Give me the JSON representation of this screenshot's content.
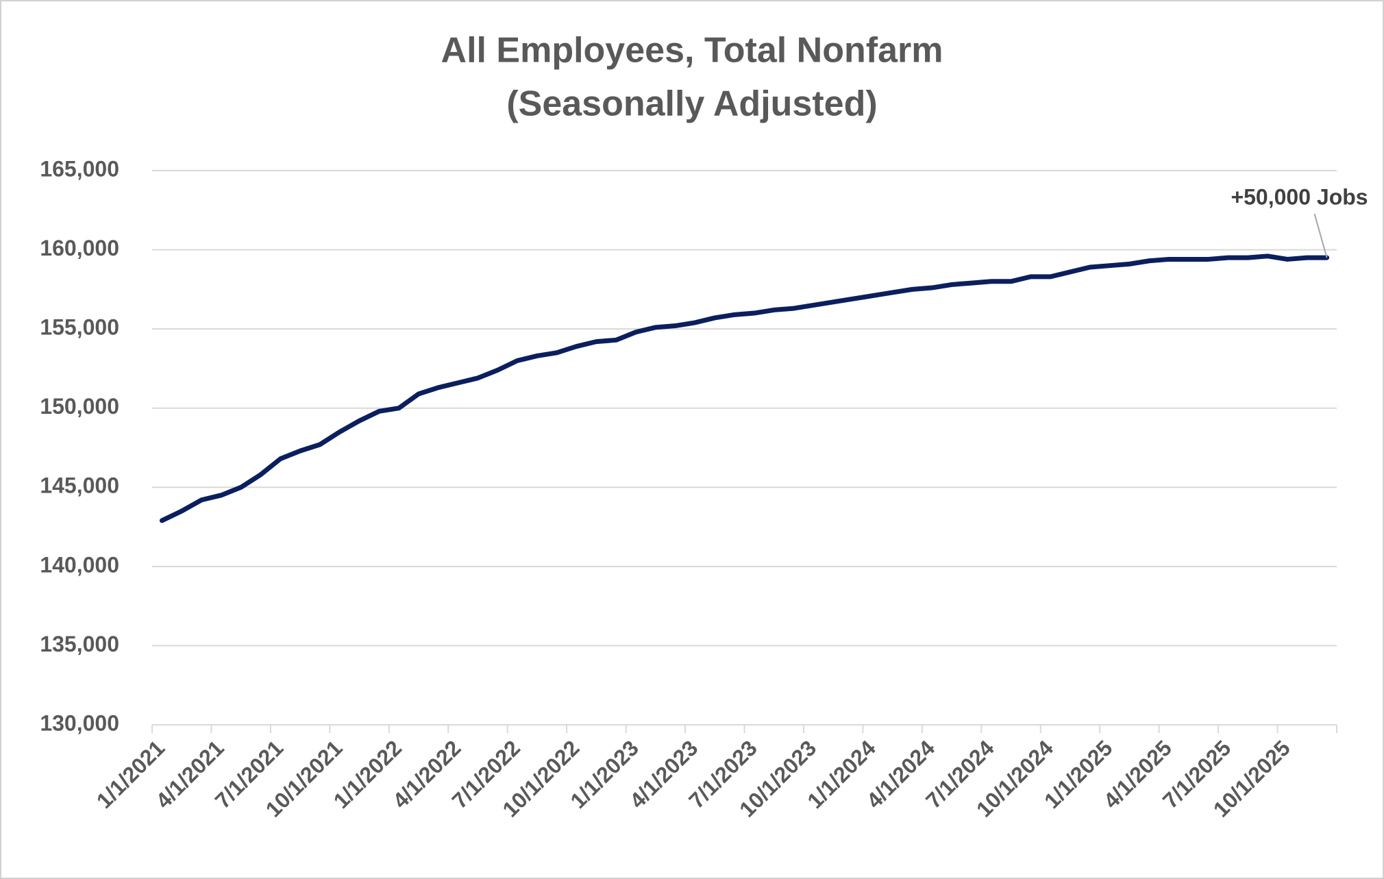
{
  "chart_data": {
    "type": "line",
    "title": "All Employees, Total Nonfarm",
    "subtitle": "(Seasonally Adjusted)",
    "categories": [
      "1/1/2021",
      null,
      null,
      "4/1/2021",
      null,
      null,
      "7/1/2021",
      null,
      null,
      "10/1/2021",
      null,
      null,
      "1/1/2022",
      null,
      null,
      "4/1/2022",
      null,
      null,
      "7/1/2022",
      null,
      null,
      "10/1/2022",
      null,
      null,
      "1/1/2023",
      null,
      null,
      "4/1/2023",
      null,
      null,
      "7/1/2023",
      null,
      null,
      "10/1/2023",
      null,
      null,
      "1/1/2024",
      null,
      null,
      "4/1/2024",
      null,
      null,
      "7/1/2024",
      null,
      null,
      "10/1/2024",
      null,
      null,
      "1/1/2025",
      null,
      null,
      "4/1/2025",
      null,
      null,
      "7/1/2025",
      null,
      null,
      "10/1/2025",
      null,
      null
    ],
    "series": [
      {
        "name": "All Employees, Total Nonfarm",
        "color": "#0b1f5e",
        "values": [
          142900,
          143500,
          144200,
          144500,
          145000,
          145800,
          146800,
          147300,
          147700,
          148500,
          149200,
          149800,
          150000,
          150900,
          151300,
          151600,
          151900,
          152400,
          153000,
          153300,
          153500,
          153900,
          154200,
          154300,
          154800,
          155100,
          155200,
          155400,
          155700,
          155900,
          156000,
          156200,
          156300,
          156500,
          156700,
          156900,
          157100,
          157300,
          157500,
          157600,
          157800,
          157900,
          158000,
          158000,
          158300,
          158300,
          158600,
          158900,
          159000,
          159100,
          159300,
          159400,
          159400,
          159400,
          159500,
          159500,
          159600,
          159400,
          159500,
          159500
        ]
      }
    ],
    "ylim": [
      130000,
      165000
    ],
    "yticks": [
      {
        "value": 130000,
        "label": "130,000"
      },
      {
        "value": 135000,
        "label": "135,000"
      },
      {
        "value": 140000,
        "label": "140,000"
      },
      {
        "value": 145000,
        "label": "145,000"
      },
      {
        "value": 150000,
        "label": "150,000"
      },
      {
        "value": 155000,
        "label": "155,000"
      },
      {
        "value": 160000,
        "label": "160,000"
      },
      {
        "value": 165000,
        "label": "165,000"
      }
    ],
    "grid": true,
    "annotation": "+50,000 Jobs"
  }
}
